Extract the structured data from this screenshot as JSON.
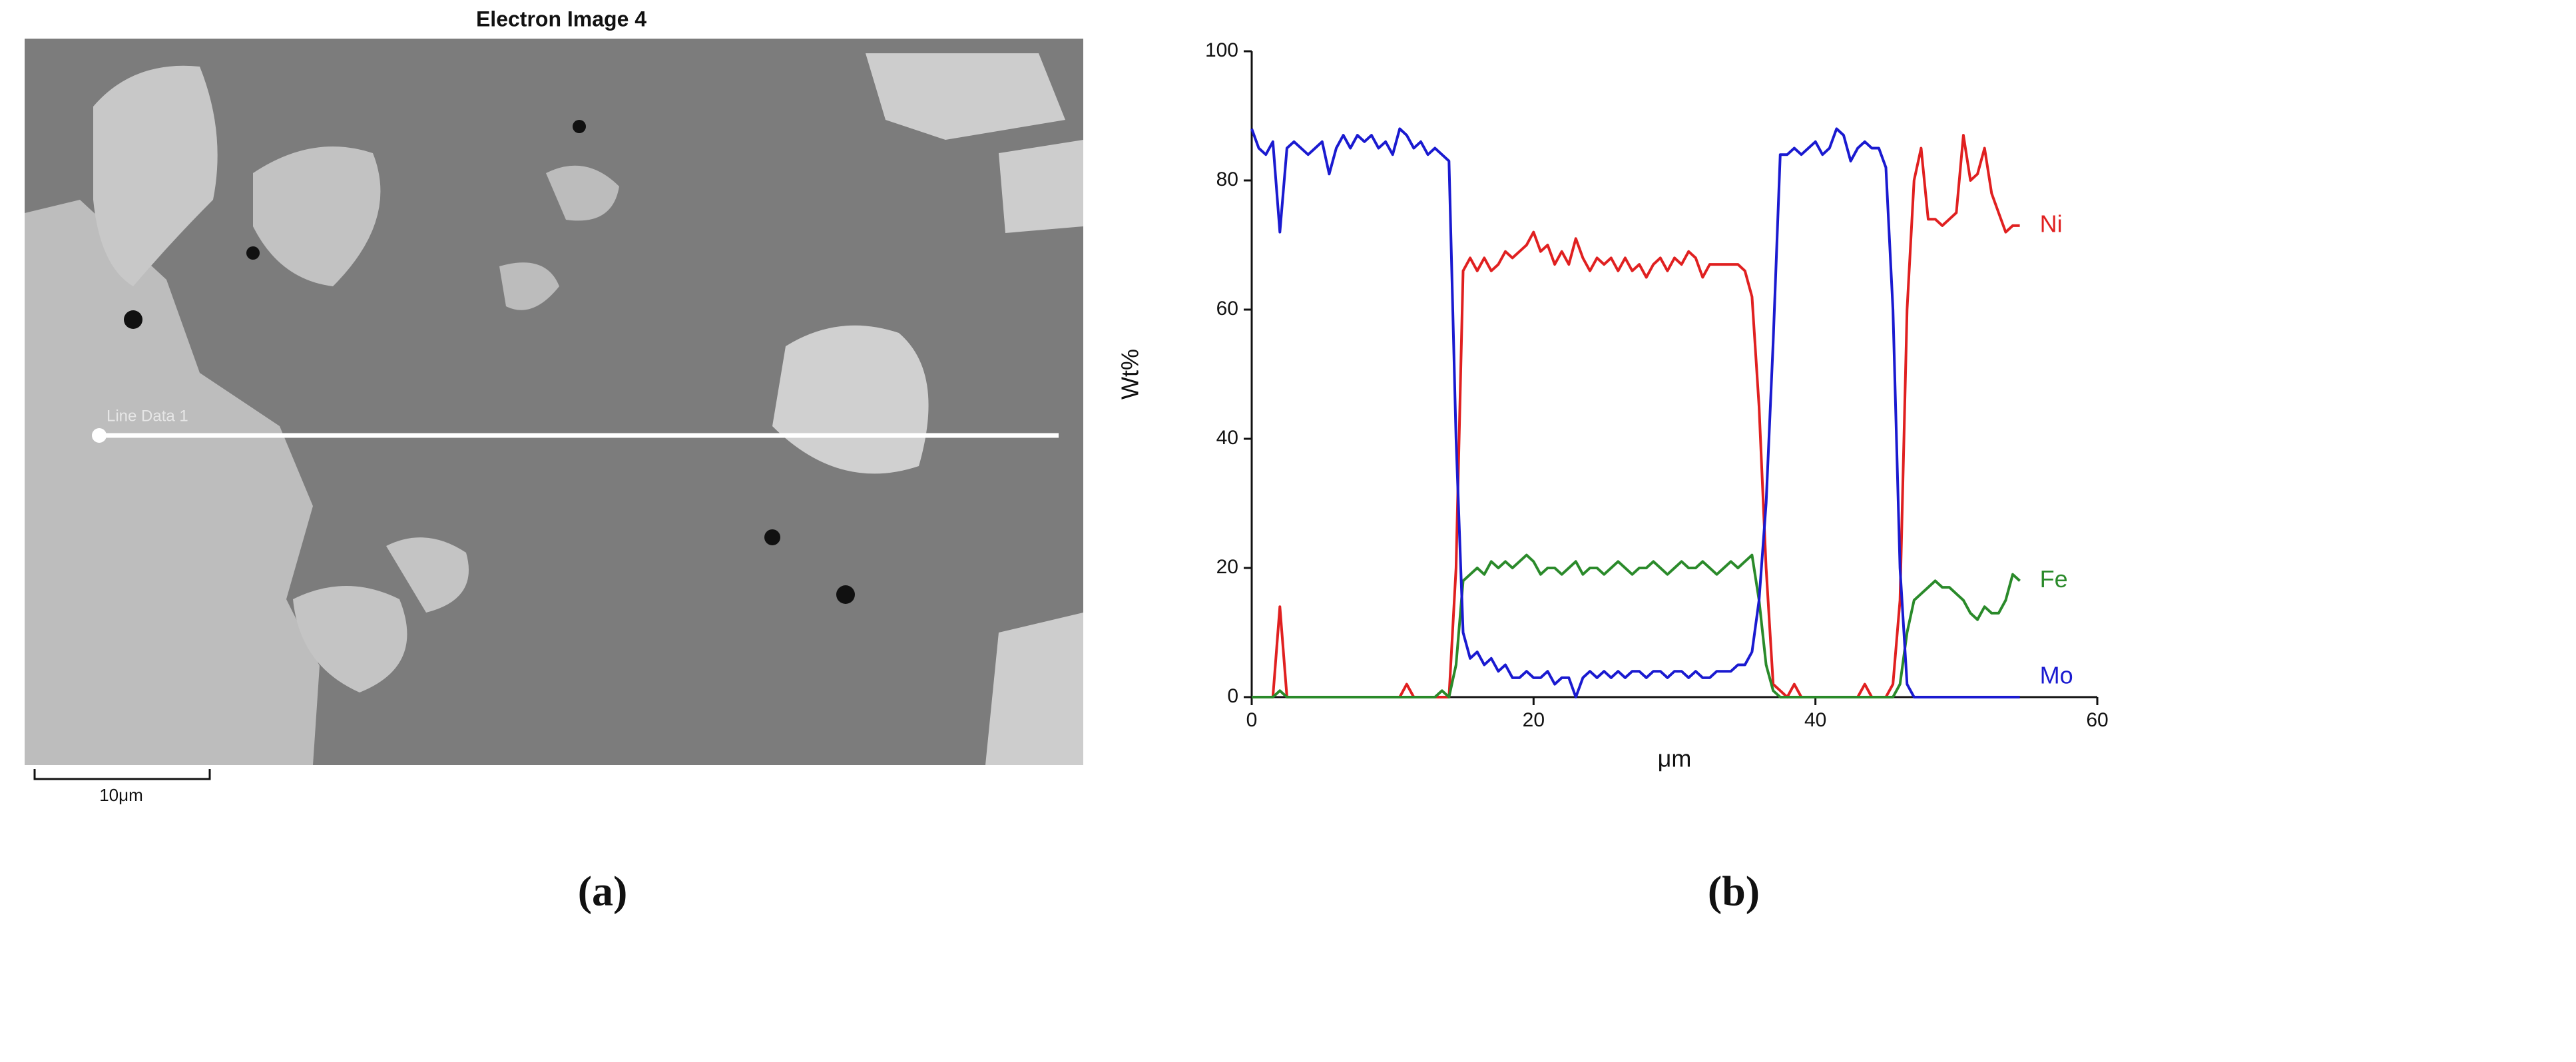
{
  "image_panel": {
    "title": "Electron Image 4",
    "line_label": "Line Data 1",
    "scale_label": "10μm",
    "panel_label": "(a)"
  },
  "chart_data": {
    "type": "line",
    "panel_label": "(b)",
    "x_label": "μm",
    "y_label": "Wt%",
    "x": [
      0,
      0.5,
      1,
      1.5,
      2,
      2.5,
      3,
      3.5,
      4,
      4.5,
      5,
      5.5,
      6,
      6.5,
      7,
      7.5,
      8,
      8.5,
      9,
      9.5,
      10,
      10.5,
      11,
      11.5,
      12,
      12.5,
      13,
      13.5,
      14,
      14.5,
      15,
      15.5,
      16,
      16.5,
      17,
      17.5,
      18,
      18.5,
      19,
      19.5,
      20,
      20.5,
      21,
      21.5,
      22,
      22.5,
      23,
      23.5,
      24,
      24.5,
      25,
      25.5,
      26,
      26.5,
      27,
      27.5,
      28,
      28.5,
      29,
      29.5,
      30,
      30.5,
      31,
      31.5,
      32,
      32.5,
      33,
      33.5,
      34,
      34.5,
      35,
      35.5,
      36,
      36.5,
      37,
      37.5,
      38,
      38.5,
      39,
      39.5,
      40,
      40.5,
      41,
      41.5,
      42,
      42.5,
      43,
      43.5,
      44,
      44.5,
      45,
      45.5,
      46,
      46.5,
      47,
      47.5,
      48,
      48.5,
      49,
      49.5,
      50,
      50.5,
      51,
      51.5,
      52,
      52.5,
      53,
      53.5,
      54,
      54.5
    ],
    "series": [
      {
        "name": "Ni",
        "color": "#e02020",
        "values": [
          0,
          0,
          0,
          0,
          14,
          0,
          0,
          0,
          0,
          0,
          0,
          0,
          0,
          0,
          0,
          0,
          0,
          0,
          0,
          0,
          0,
          0,
          2,
          0,
          0,
          0,
          0,
          0,
          0,
          20,
          66,
          68,
          66,
          68,
          66,
          67,
          69,
          68,
          69,
          70,
          72,
          69,
          70,
          67,
          69,
          67,
          71,
          68,
          66,
          68,
          67,
          68,
          66,
          68,
          66,
          67,
          65,
          67,
          68,
          66,
          68,
          67,
          69,
          68,
          65,
          67,
          67,
          67,
          67,
          67,
          66,
          62,
          45,
          20,
          2,
          1,
          0,
          2,
          0,
          0,
          0,
          0,
          0,
          0,
          0,
          0,
          0,
          2,
          0,
          0,
          0,
          2,
          15,
          60,
          80,
          85,
          74,
          74,
          73,
          74,
          75,
          87,
          80,
          81,
          85,
          78,
          75,
          72,
          73,
          73
        ]
      },
      {
        "name": "Fe",
        "color": "#2a8a2a",
        "values": [
          0,
          0,
          0,
          0,
          1,
          0,
          0,
          0,
          0,
          0,
          0,
          0,
          0,
          0,
          0,
          0,
          0,
          0,
          0,
          0,
          0,
          0,
          0,
          0,
          0,
          0,
          0,
          1,
          0,
          5,
          18,
          19,
          20,
          19,
          21,
          20,
          21,
          20,
          21,
          22,
          21,
          19,
          20,
          20,
          19,
          20,
          21,
          19,
          20,
          20,
          19,
          20,
          21,
          20,
          19,
          20,
          20,
          21,
          20,
          19,
          20,
          21,
          20,
          20,
          21,
          20,
          19,
          20,
          21,
          20,
          21,
          22,
          15,
          5,
          1,
          0,
          0,
          0,
          0,
          0,
          0,
          0,
          0,
          0,
          0,
          0,
          0,
          0,
          0,
          0,
          0,
          0,
          2,
          10,
          15,
          16,
          17,
          18,
          17,
          17,
          16,
          15,
          13,
          12,
          14,
          13,
          13,
          15,
          19,
          18
        ]
      },
      {
        "name": "Mo",
        "color": "#1a1ad0",
        "values": [
          88,
          85,
          84,
          86,
          72,
          85,
          86,
          85,
          84,
          85,
          86,
          81,
          85,
          87,
          85,
          87,
          86,
          87,
          85,
          86,
          84,
          88,
          87,
          85,
          86,
          84,
          85,
          84,
          83,
          40,
          10,
          6,
          7,
          5,
          6,
          4,
          5,
          3,
          3,
          4,
          3,
          3,
          4,
          2,
          3,
          3,
          0,
          3,
          4,
          3,
          4,
          3,
          4,
          3,
          4,
          4,
          3,
          4,
          4,
          3,
          4,
          4,
          3,
          4,
          3,
          3,
          4,
          4,
          4,
          5,
          5,
          7,
          15,
          30,
          55,
          84,
          84,
          85,
          84,
          85,
          86,
          84,
          85,
          88,
          87,
          83,
          85,
          86,
          85,
          85,
          82,
          60,
          20,
          2,
          0,
          0,
          0,
          0,
          0,
          0,
          0,
          0,
          0,
          0,
          0,
          0,
          0,
          0,
          0,
          0
        ]
      }
    ],
    "xlim": [
      0,
      60
    ],
    "xticks": [
      0,
      20,
      40,
      60
    ],
    "ylim": [
      0,
      100
    ],
    "yticks": [
      0,
      20,
      40,
      60,
      80,
      100
    ]
  }
}
